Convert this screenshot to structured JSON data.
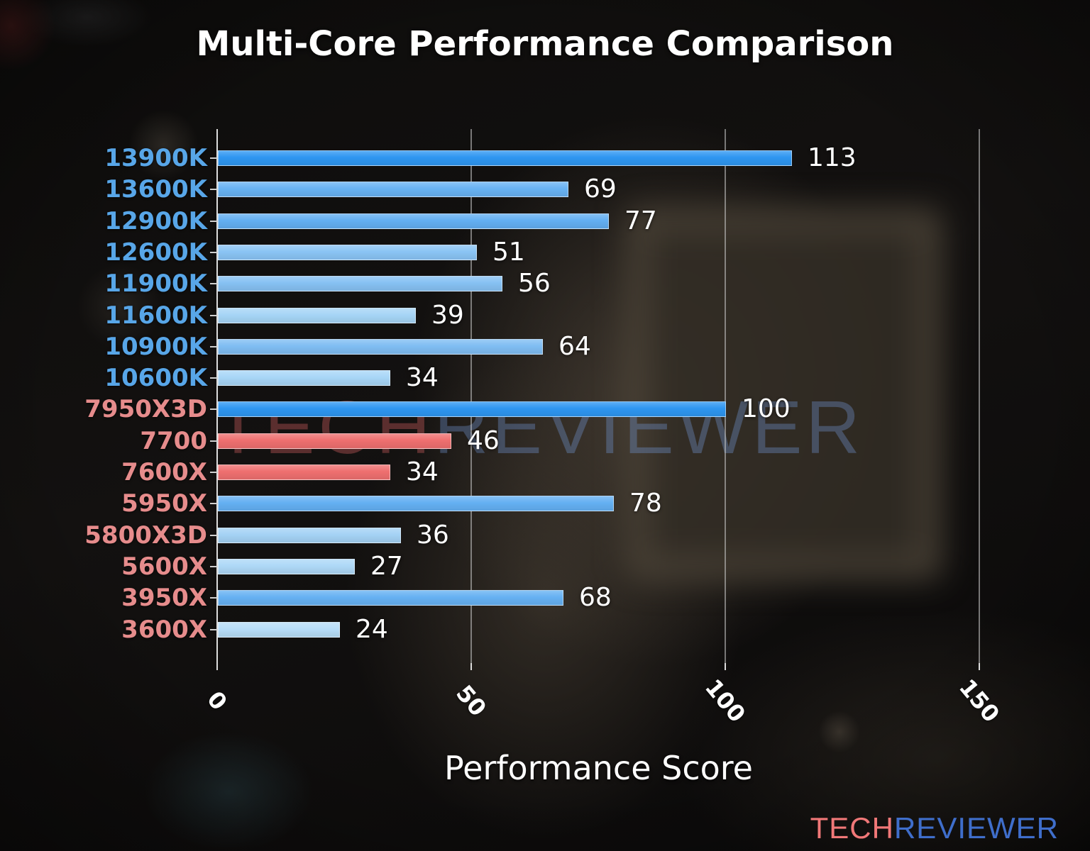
{
  "title": "Multi-Core Performance Comparison",
  "x_axis": {
    "label": "Performance Score",
    "tick_labels": [
      "0",
      "50",
      "100",
      "150"
    ]
  },
  "watermark": {
    "tech": "TECH",
    "reviewer": "REVIEWER"
  },
  "logo": {
    "tech": "TECH",
    "reviewer": "REVIEWER"
  },
  "colors": {
    "intel_label": "#58a6e8",
    "amd_label": "#e68c8c",
    "value_text": "#ffffff",
    "grid": "#cdcdcd",
    "axis": "#dcdcdc",
    "highlight_bar": "#2e96f1",
    "amd_new_bar": "#ee6f6f",
    "logo_tech": "#f17878",
    "logo_reviewer": "#3f6ecb"
  },
  "chart_data": {
    "type": "bar",
    "orientation": "horizontal",
    "title": "Multi-Core Performance Comparison",
    "xlabel": "Performance Score",
    "ylabel": "",
    "xlim": [
      0,
      157
    ],
    "xticks": [
      0,
      50,
      100,
      150
    ],
    "grid": "vertical gridlines at 50, 100, 150",
    "legend": "none",
    "categories": [
      "13900K",
      "13600K",
      "12900K",
      "12600K",
      "11900K",
      "11600K",
      "10900K",
      "10600K",
      "7950X3D",
      "7700",
      "7600X",
      "5950X",
      "5800X3D",
      "5600X",
      "3950X",
      "3600X"
    ],
    "values": [
      113,
      69,
      77,
      51,
      56,
      39,
      64,
      34,
      100,
      46,
      34,
      78,
      36,
      27,
      68,
      24
    ],
    "bars": [
      {
        "label": "13900K",
        "value": 113,
        "brand": "intel",
        "bar_color": "#2e96f1",
        "label_color": "#58a6e8"
      },
      {
        "label": "13600K",
        "value": 69,
        "brand": "intel",
        "bar_color": "#68b2f3",
        "label_color": "#58a6e8"
      },
      {
        "label": "12900K",
        "value": 77,
        "brand": "intel",
        "bar_color": "#63aff2",
        "label_color": "#58a6e8"
      },
      {
        "label": "12600K",
        "value": 51,
        "brand": "intel",
        "bar_color": "#8ac4f4",
        "label_color": "#58a6e8"
      },
      {
        "label": "11900K",
        "value": 56,
        "brand": "intel",
        "bar_color": "#86c1f3",
        "label_color": "#58a6e8"
      },
      {
        "label": "11600K",
        "value": 39,
        "brand": "intel",
        "bar_color": "#a6d5f6",
        "label_color": "#58a6e8"
      },
      {
        "label": "10900K",
        "value": 64,
        "brand": "intel",
        "bar_color": "#7fbdf2",
        "label_color": "#58a6e8"
      },
      {
        "label": "10600K",
        "value": 34,
        "brand": "intel",
        "bar_color": "#a8d6f7",
        "label_color": "#58a6e8"
      },
      {
        "label": "7950X3D",
        "value": 100,
        "brand": "amd",
        "bar_color": "#2e96f1",
        "label_color": "#e68c8c"
      },
      {
        "label": "7700",
        "value": 46,
        "brand": "amd",
        "bar_color": "#ee6f6f",
        "label_color": "#e68c8c"
      },
      {
        "label": "7600X",
        "value": 34,
        "brand": "amd",
        "bar_color": "#ee6f6f",
        "label_color": "#e68c8c"
      },
      {
        "label": "5950X",
        "value": 78,
        "brand": "amd",
        "bar_color": "#64b0f2",
        "label_color": "#e68c8c"
      },
      {
        "label": "5800X3D",
        "value": 36,
        "brand": "amd",
        "bar_color": "#a4d2f5",
        "label_color": "#e68c8c"
      },
      {
        "label": "5600X",
        "value": 27,
        "brand": "amd",
        "bar_color": "#aed8f7",
        "label_color": "#e68c8c"
      },
      {
        "label": "3950X",
        "value": 68,
        "brand": "amd",
        "bar_color": "#66b1f2",
        "label_color": "#e68c8c"
      },
      {
        "label": "3600X",
        "value": 24,
        "brand": "amd",
        "bar_color": "#b7ddf8",
        "label_color": "#e68c8c"
      }
    ]
  }
}
